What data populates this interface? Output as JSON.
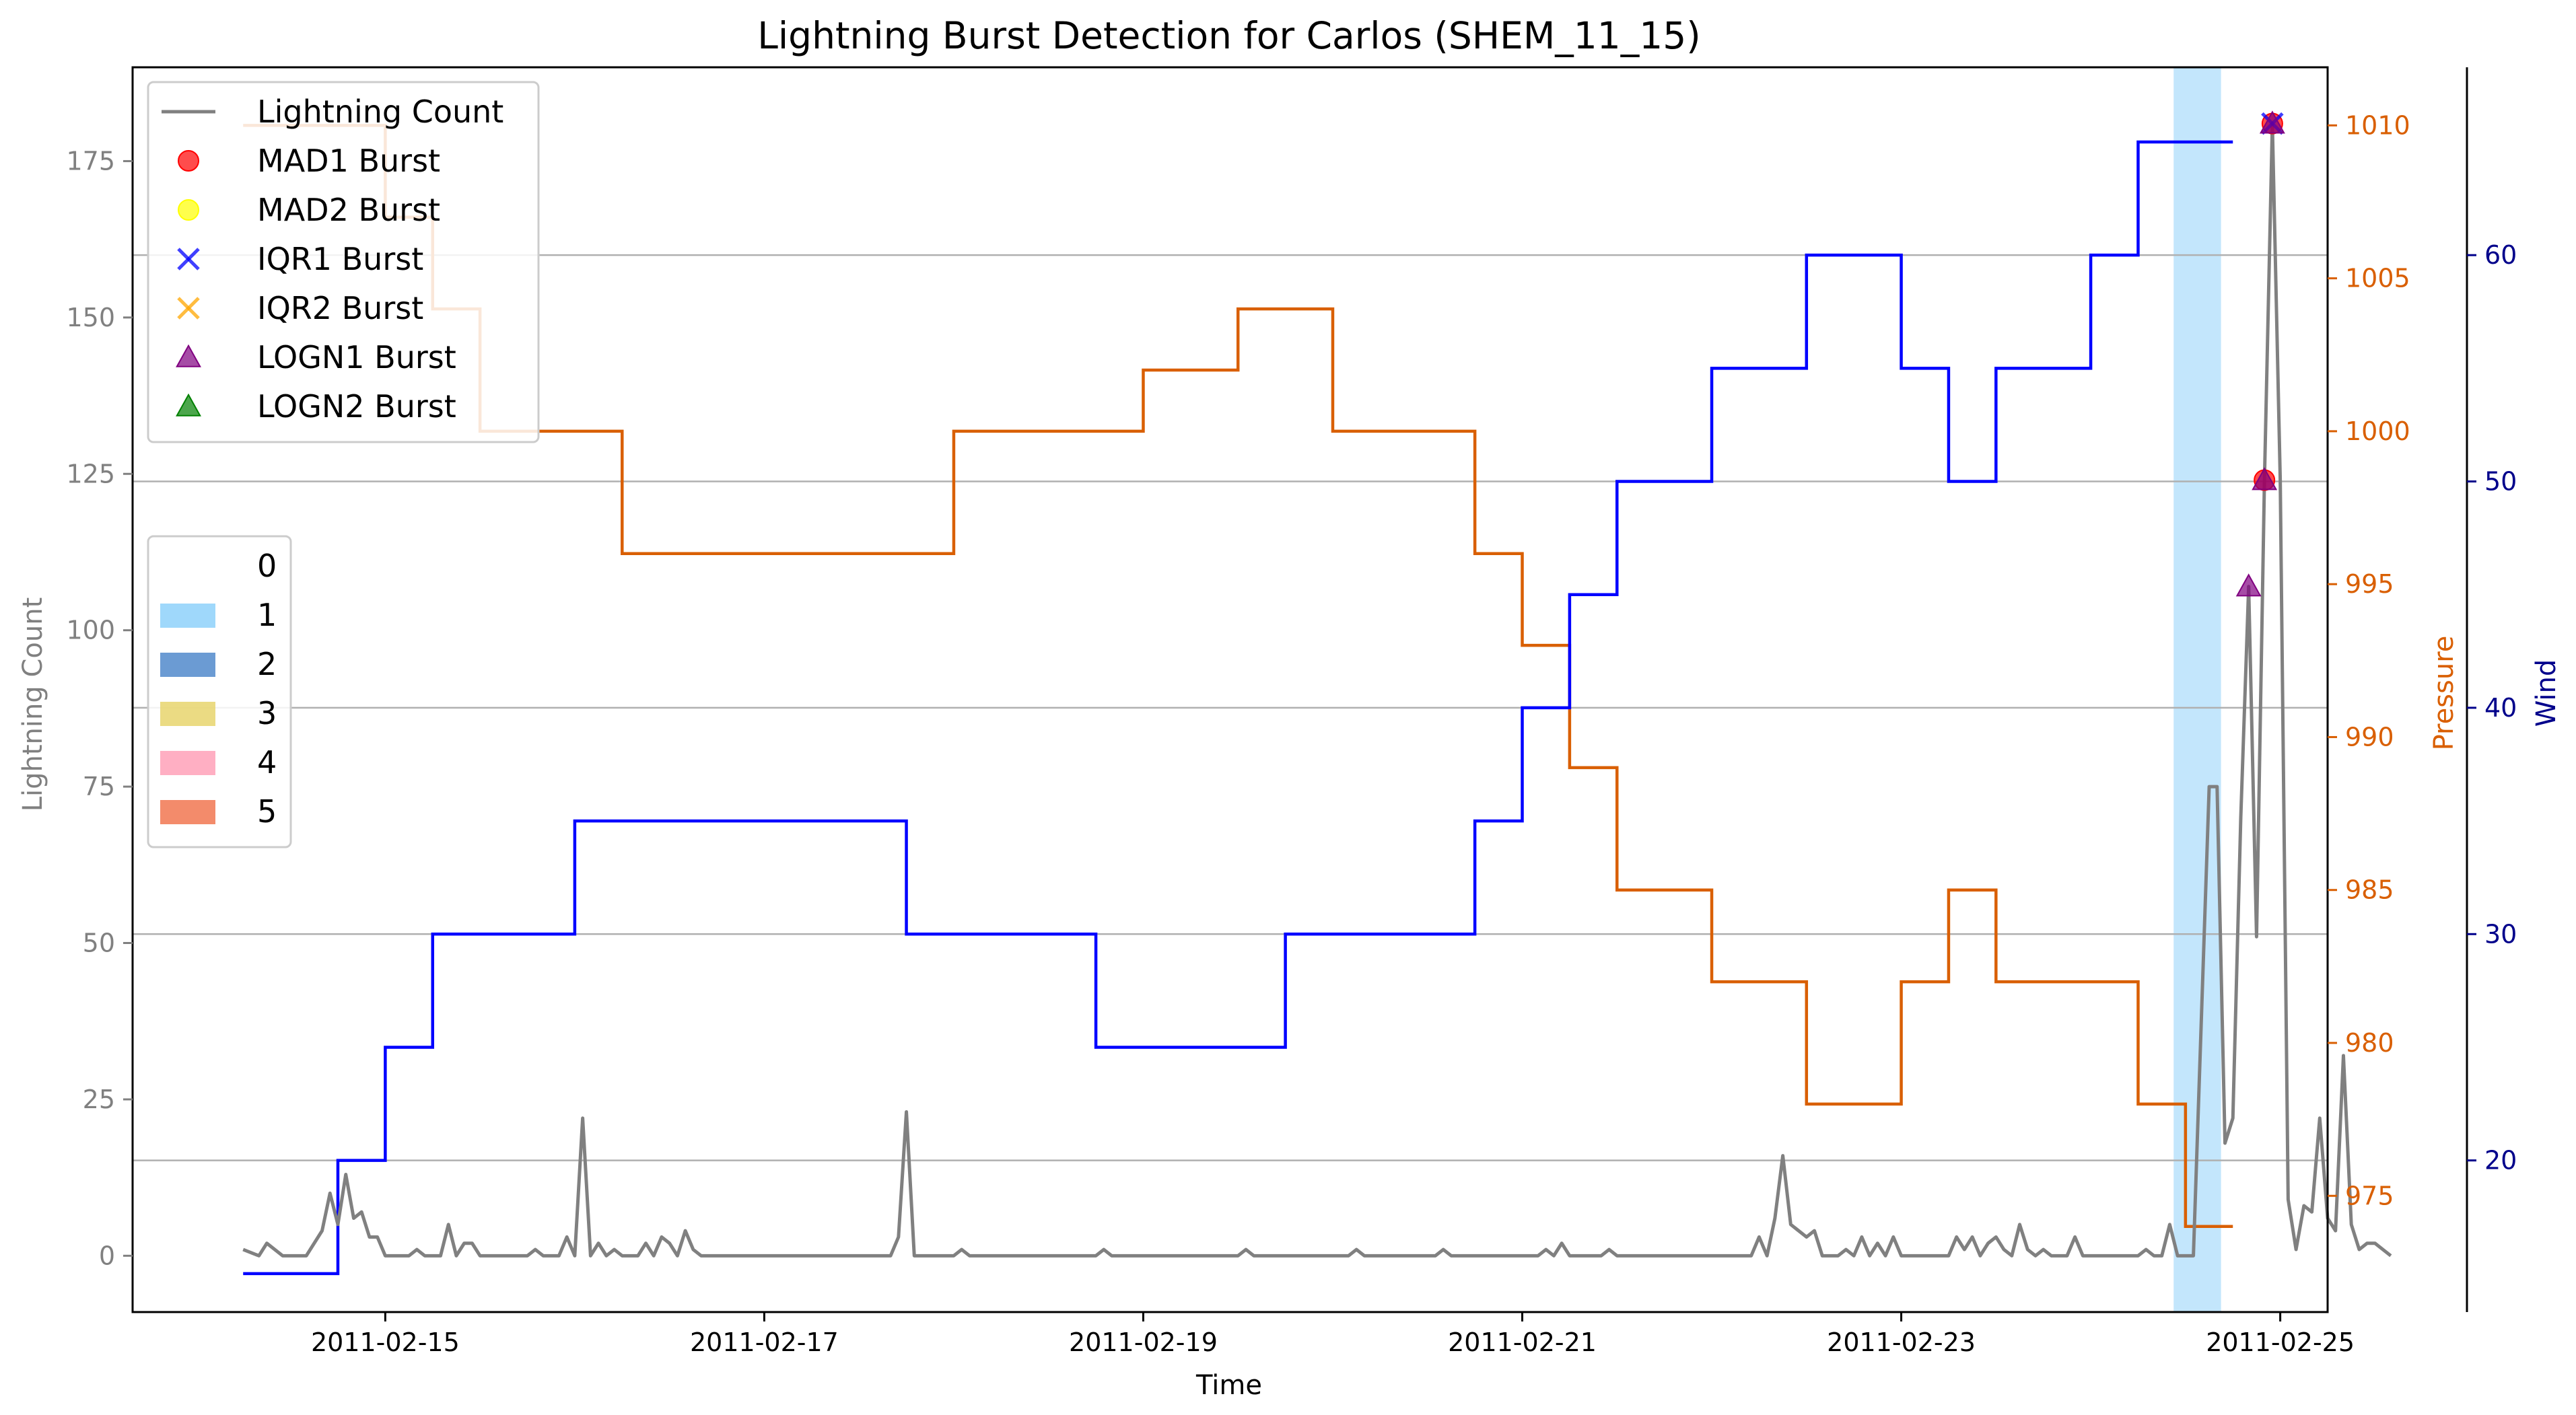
{
  "chart_data": {
    "type": "line",
    "title": "Lightning Burst Detection for Carlos (SHEM_11_15)",
    "xlabel": "Time",
    "ylabel": "Lightning Count",
    "y2label": "Pressure",
    "y3label": "Wind",
    "xlim": [
      "2011-02-13 16:00",
      "2011-02-25 06:00"
    ],
    "ylim": [
      -9,
      190
    ],
    "y2lim": [
      971.2,
      1011.9
    ],
    "y3lim": [
      13.3,
      68.3
    ],
    "xticks": [
      "2011-02-15",
      "2011-02-17",
      "2011-02-19",
      "2011-02-21",
      "2011-02-23",
      "2011-02-25"
    ],
    "yticks": [
      0,
      25,
      50,
      75,
      100,
      125,
      150,
      175
    ],
    "y2ticks": [
      975,
      980,
      985,
      990,
      995,
      1000,
      1005,
      1010
    ],
    "y3ticks": [
      20,
      30,
      40,
      50,
      60
    ],
    "colors": {
      "lightning": "#808080",
      "pressure": "#d95f02",
      "wind": "#0000ff",
      "pressure_axis": "#d95f02",
      "wind_axis": "#00008b",
      "count_axis": "#808080",
      "grid": "#b0b0b0"
    },
    "grid": "horizontal lines at wind-axis ticks",
    "legend_position": "upper-left",
    "series": [
      {
        "name": "Lightning Count",
        "axis": "left",
        "points": [
          [
            "2011-02-14 06:00",
            1
          ],
          [
            "2011-02-14 08:00",
            0
          ],
          [
            "2011-02-14 09:00",
            2
          ],
          [
            "2011-02-14 11:00",
            0
          ],
          [
            "2011-02-14 14:00",
            0
          ],
          [
            "2011-02-14 16:00",
            4
          ],
          [
            "2011-02-14 17:00",
            10
          ],
          [
            "2011-02-14 18:00",
            5
          ],
          [
            "2011-02-14 19:00",
            13
          ],
          [
            "2011-02-14 20:00",
            6
          ],
          [
            "2011-02-14 21:00",
            7
          ],
          [
            "2011-02-14 22:00",
            3
          ],
          [
            "2011-02-14 23:00",
            3
          ],
          [
            "2011-02-15 00:00",
            0
          ],
          [
            "2011-02-15 03:00",
            0
          ],
          [
            "2011-02-15 04:00",
            1
          ],
          [
            "2011-02-15 05:00",
            0
          ],
          [
            "2011-02-15 07:00",
            0
          ],
          [
            "2011-02-15 08:00",
            5
          ],
          [
            "2011-02-15 09:00",
            0
          ],
          [
            "2011-02-15 10:00",
            2
          ],
          [
            "2011-02-15 11:00",
            2
          ],
          [
            "2011-02-15 12:00",
            0
          ],
          [
            "2011-02-15 18:00",
            0
          ],
          [
            "2011-02-15 19:00",
            1
          ],
          [
            "2011-02-15 20:00",
            0
          ],
          [
            "2011-02-15 22:00",
            0
          ],
          [
            "2011-02-15 23:00",
            3
          ],
          [
            "2011-02-16 00:00",
            0
          ],
          [
            "2011-02-16 01:00",
            22
          ],
          [
            "2011-02-16 02:00",
            0
          ],
          [
            "2011-02-16 03:00",
            2
          ],
          [
            "2011-02-16 04:00",
            0
          ],
          [
            "2011-02-16 05:00",
            1
          ],
          [
            "2011-02-16 06:00",
            0
          ],
          [
            "2011-02-16 08:00",
            0
          ],
          [
            "2011-02-16 09:00",
            2
          ],
          [
            "2011-02-16 10:00",
            0
          ],
          [
            "2011-02-16 11:00",
            3
          ],
          [
            "2011-02-16 12:00",
            2
          ],
          [
            "2011-02-16 13:00",
            0
          ],
          [
            "2011-02-16 14:00",
            4
          ],
          [
            "2011-02-16 15:00",
            1
          ],
          [
            "2011-02-16 16:00",
            0
          ],
          [
            "2011-02-17 16:00",
            0
          ],
          [
            "2011-02-17 17:00",
            3
          ],
          [
            "2011-02-17 18:00",
            23
          ],
          [
            "2011-02-17 19:00",
            0
          ],
          [
            "2011-02-18 00:00",
            0
          ],
          [
            "2011-02-18 01:00",
            1
          ],
          [
            "2011-02-18 02:00",
            0
          ],
          [
            "2011-02-18 18:00",
            0
          ],
          [
            "2011-02-18 19:00",
            1
          ],
          [
            "2011-02-18 20:00",
            0
          ],
          [
            "2011-02-19 12:00",
            0
          ],
          [
            "2011-02-19 13:00",
            1
          ],
          [
            "2011-02-19 14:00",
            0
          ],
          [
            "2011-02-20 02:00",
            0
          ],
          [
            "2011-02-20 03:00",
            1
          ],
          [
            "2011-02-20 04:00",
            0
          ],
          [
            "2011-02-20 13:00",
            0
          ],
          [
            "2011-02-20 14:00",
            1
          ],
          [
            "2011-02-20 15:00",
            0
          ],
          [
            "2011-02-21 02:00",
            0
          ],
          [
            "2011-02-21 03:00",
            1
          ],
          [
            "2011-02-21 04:00",
            0
          ],
          [
            "2011-02-21 05:00",
            2
          ],
          [
            "2011-02-21 06:00",
            0
          ],
          [
            "2011-02-21 10:00",
            0
          ],
          [
            "2011-02-21 11:00",
            1
          ],
          [
            "2011-02-21 12:00",
            0
          ],
          [
            "2011-02-22 05:00",
            0
          ],
          [
            "2011-02-22 06:00",
            3
          ],
          [
            "2011-02-22 07:00",
            0
          ],
          [
            "2011-02-22 08:00",
            6
          ],
          [
            "2011-02-22 09:00",
            16
          ],
          [
            "2011-02-22 10:00",
            5
          ],
          [
            "2011-02-22 11:00",
            4
          ],
          [
            "2011-02-22 12:00",
            3
          ],
          [
            "2011-02-22 13:00",
            4
          ],
          [
            "2011-02-22 14:00",
            0
          ],
          [
            "2011-02-22 16:00",
            0
          ],
          [
            "2011-02-22 17:00",
            1
          ],
          [
            "2011-02-22 18:00",
            0
          ],
          [
            "2011-02-22 19:00",
            3
          ],
          [
            "2011-02-22 20:00",
            0
          ],
          [
            "2011-02-22 21:00",
            2
          ],
          [
            "2011-02-22 22:00",
            0
          ],
          [
            "2011-02-22 23:00",
            3
          ],
          [
            "2011-02-23 00:00",
            0
          ],
          [
            "2011-02-23 06:00",
            0
          ],
          [
            "2011-02-23 07:00",
            3
          ],
          [
            "2011-02-23 08:00",
            1
          ],
          [
            "2011-02-23 09:00",
            3
          ],
          [
            "2011-02-23 10:00",
            0
          ],
          [
            "2011-02-23 11:00",
            2
          ],
          [
            "2011-02-23 12:00",
            3
          ],
          [
            "2011-02-23 13:00",
            1
          ],
          [
            "2011-02-23 14:00",
            0
          ],
          [
            "2011-02-23 15:00",
            5
          ],
          [
            "2011-02-23 16:00",
            1
          ],
          [
            "2011-02-23 17:00",
            0
          ],
          [
            "2011-02-23 18:00",
            1
          ],
          [
            "2011-02-23 19:00",
            0
          ],
          [
            "2011-02-23 21:00",
            0
          ],
          [
            "2011-02-23 22:00",
            3
          ],
          [
            "2011-02-23 23:00",
            0
          ],
          [
            "2011-02-24 06:00",
            0
          ],
          [
            "2011-02-24 07:00",
            1
          ],
          [
            "2011-02-24 08:00",
            0
          ],
          [
            "2011-02-24 09:00",
            0
          ],
          [
            "2011-02-24 10:00",
            5
          ],
          [
            "2011-02-24 11:00",
            0
          ],
          [
            "2011-02-24 12:00",
            0
          ],
          [
            "2011-02-24 13:00",
            0
          ],
          [
            "2011-02-24 15:00",
            75
          ],
          [
            "2011-02-24 16:00",
            75
          ],
          [
            "2011-02-24 17:00",
            18
          ],
          [
            "2011-02-24 18:00",
            22
          ],
          [
            "2011-02-24 19:00",
            70
          ],
          [
            "2011-02-24 20:00",
            107
          ],
          [
            "2011-02-24 21:00",
            51
          ],
          [
            "2011-02-24 22:00",
            124
          ],
          [
            "2011-02-24 23:00",
            181
          ],
          [
            "2011-02-25 00:00",
            124
          ],
          [
            "2011-02-25 01:00",
            9
          ],
          [
            "2011-02-25 02:00",
            1
          ],
          [
            "2011-02-25 03:00",
            8
          ],
          [
            "2011-02-25 04:00",
            7
          ],
          [
            "2011-02-25 05:00",
            22
          ],
          [
            "2011-02-25 06:00",
            6
          ],
          [
            "2011-02-25 07:00",
            4
          ],
          [
            "2011-02-25 08:00",
            32
          ],
          [
            "2011-02-25 09:00",
            5
          ],
          [
            "2011-02-25 10:00",
            1
          ],
          [
            "2011-02-25 11:00",
            2
          ],
          [
            "2011-02-25 12:00",
            2
          ],
          [
            "2011-02-25 13:00",
            1
          ],
          [
            "2011-02-25 14:00",
            0
          ]
        ]
      },
      {
        "name": "Pressure",
        "axis": "right",
        "points": [
          [
            "2011-02-14 06:00",
            1010
          ],
          [
            "2011-02-14 12:00",
            1010
          ],
          [
            "2011-02-14 18:00",
            1010
          ],
          [
            "2011-02-15 00:00",
            1007
          ],
          [
            "2011-02-15 06:00",
            1004
          ],
          [
            "2011-02-15 12:00",
            1000
          ],
          [
            "2011-02-15 18:00",
            1000
          ],
          [
            "2011-02-16 00:00",
            1000
          ],
          [
            "2011-02-16 06:00",
            996
          ],
          [
            "2011-02-16 12:00",
            996
          ],
          [
            "2011-02-16 18:00",
            996
          ],
          [
            "2011-02-17 00:00",
            996
          ],
          [
            "2011-02-17 06:00",
            996
          ],
          [
            "2011-02-17 12:00",
            996
          ],
          [
            "2011-02-17 18:00",
            996
          ],
          [
            "2011-02-18 00:00",
            1000
          ],
          [
            "2011-02-18 06:00",
            1000
          ],
          [
            "2011-02-18 12:00",
            1000
          ],
          [
            "2011-02-18 18:00",
            1000
          ],
          [
            "2011-02-19 00:00",
            1002
          ],
          [
            "2011-02-19 06:00",
            1002
          ],
          [
            "2011-02-19 12:00",
            1004
          ],
          [
            "2011-02-19 18:00",
            1004
          ],
          [
            "2011-02-20 00:00",
            1000
          ],
          [
            "2011-02-20 06:00",
            1000
          ],
          [
            "2011-02-20 12:00",
            1000
          ],
          [
            "2011-02-20 18:00",
            996
          ],
          [
            "2011-02-21 00:00",
            993
          ],
          [
            "2011-02-21 06:00",
            989
          ],
          [
            "2011-02-21 12:00",
            985
          ],
          [
            "2011-02-21 18:00",
            985
          ],
          [
            "2011-02-22 00:00",
            982
          ],
          [
            "2011-02-22 06:00",
            982
          ],
          [
            "2011-02-22 12:00",
            978
          ],
          [
            "2011-02-22 18:00",
            978
          ],
          [
            "2011-02-23 00:00",
            982
          ],
          [
            "2011-02-23 06:00",
            985
          ],
          [
            "2011-02-23 12:00",
            982
          ],
          [
            "2011-02-23 18:00",
            982
          ],
          [
            "2011-02-24 00:00",
            982
          ],
          [
            "2011-02-24 06:00",
            978
          ],
          [
            "2011-02-24 12:00",
            974
          ],
          [
            "2011-02-24 18:00",
            974
          ]
        ]
      },
      {
        "name": "Wind",
        "axis": "right-outer",
        "points": [
          [
            "2011-02-14 06:00",
            15
          ],
          [
            "2011-02-14 12:00",
            15
          ],
          [
            "2011-02-14 18:00",
            20
          ],
          [
            "2011-02-15 00:00",
            25
          ],
          [
            "2011-02-15 06:00",
            30
          ],
          [
            "2011-02-15 12:00",
            30
          ],
          [
            "2011-02-15 18:00",
            30
          ],
          [
            "2011-02-16 00:00",
            35
          ],
          [
            "2011-02-16 06:00",
            35
          ],
          [
            "2011-02-16 12:00",
            35
          ],
          [
            "2011-02-16 18:00",
            35
          ],
          [
            "2011-02-17 00:00",
            35
          ],
          [
            "2011-02-17 06:00",
            35
          ],
          [
            "2011-02-17 12:00",
            35
          ],
          [
            "2011-02-17 18:00",
            30
          ],
          [
            "2011-02-18 00:00",
            30
          ],
          [
            "2011-02-18 06:00",
            30
          ],
          [
            "2011-02-18 12:00",
            30
          ],
          [
            "2011-02-18 18:00",
            25
          ],
          [
            "2011-02-19 00:00",
            25
          ],
          [
            "2011-02-19 06:00",
            25
          ],
          [
            "2011-02-19 12:00",
            25
          ],
          [
            "2011-02-19 18:00",
            30
          ],
          [
            "2011-02-20 00:00",
            30
          ],
          [
            "2011-02-20 06:00",
            30
          ],
          [
            "2011-02-20 12:00",
            30
          ],
          [
            "2011-02-20 18:00",
            35
          ],
          [
            "2011-02-21 00:00",
            40
          ],
          [
            "2011-02-21 06:00",
            45
          ],
          [
            "2011-02-21 12:00",
            50
          ],
          [
            "2011-02-21 18:00",
            50
          ],
          [
            "2011-02-22 00:00",
            55
          ],
          [
            "2011-02-22 06:00",
            55
          ],
          [
            "2011-02-22 12:00",
            60
          ],
          [
            "2011-02-22 18:00",
            60
          ],
          [
            "2011-02-23 00:00",
            55
          ],
          [
            "2011-02-23 06:00",
            50
          ],
          [
            "2011-02-23 12:00",
            55
          ],
          [
            "2011-02-23 18:00",
            55
          ],
          [
            "2011-02-24 00:00",
            60
          ],
          [
            "2011-02-24 06:00",
            65
          ],
          [
            "2011-02-24 12:00",
            65
          ],
          [
            "2011-02-24 18:00",
            65
          ]
        ]
      },
      {
        "name": "MAD1 Burst",
        "axis": "left",
        "marker": "circle",
        "color": "#ff0000",
        "points": [
          [
            "2011-02-24 22:00",
            124
          ],
          [
            "2011-02-24 23:00",
            181
          ]
        ]
      },
      {
        "name": "MAD2 Burst",
        "axis": "left",
        "marker": "circle",
        "color": "#ffff00",
        "points": []
      },
      {
        "name": "IQR1 Burst",
        "axis": "left",
        "marker": "x",
        "color": "#0000ff",
        "points": [
          [
            "2011-02-24 23:00",
            181
          ]
        ]
      },
      {
        "name": "IQR2 Burst",
        "axis": "left",
        "marker": "x",
        "color": "#ffa500",
        "points": []
      },
      {
        "name": "LOGN1 Burst",
        "axis": "left",
        "marker": "triangle",
        "color": "#800080",
        "points": [
          [
            "2011-02-24 20:00",
            107
          ],
          [
            "2011-02-24 22:00",
            124
          ],
          [
            "2011-02-24 23:00",
            181
          ]
        ]
      },
      {
        "name": "LOGN2 Burst",
        "axis": "left",
        "marker": "triangle",
        "color": "#008000",
        "points": []
      }
    ],
    "category_legend": {
      "position": "middle-left",
      "entries": [
        {
          "label": "0",
          "color": "#ffffff"
        },
        {
          "label": "1",
          "color": "#87cefa"
        },
        {
          "label": "2",
          "color": "#4682c8"
        },
        {
          "label": "3",
          "color": "#e6d264"
        },
        {
          "label": "4",
          "color": "#ff9bb4"
        },
        {
          "label": "5",
          "color": "#f06e46"
        }
      ]
    },
    "category_spans": [
      {
        "category": "1",
        "start": "2011-02-24 10:30",
        "end": "2011-02-24 16:30"
      }
    ]
  }
}
